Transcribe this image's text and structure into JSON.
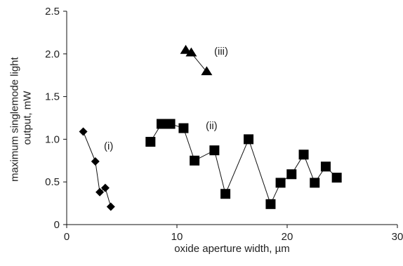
{
  "chart_data": {
    "type": "scatter",
    "xlabel": "oxide aperture width, µm",
    "ylabel": "maximum singlemode light output, mW",
    "xlim": [
      0,
      30
    ],
    "ylim": [
      0,
      2.5
    ],
    "x_ticks": [
      0,
      10,
      20,
      30
    ],
    "y_ticks": [
      0,
      0.5,
      1.0,
      1.5,
      2.0,
      2.5
    ],
    "x_tick_labels": [
      "0",
      "10",
      "20",
      "30"
    ],
    "y_tick_labels": [
      "0",
      "0.5",
      "1.0",
      "1.5",
      "2.0",
      "2.5"
    ],
    "grid": false,
    "legend": "none",
    "series": [
      {
        "name": "(i)",
        "marker": "diamond",
        "x": [
          1.5,
          2.6,
          3.0,
          3.5,
          4.0
        ],
        "y": [
          1.09,
          0.74,
          0.38,
          0.43,
          0.21
        ]
      },
      {
        "name": "(ii)",
        "marker": "square",
        "x": [
          7.6,
          8.6,
          9.4,
          10.6,
          11.6,
          13.4,
          14.4,
          16.5,
          18.5,
          19.4,
          20.4,
          21.5,
          22.5,
          23.5,
          24.5
        ],
        "y": [
          0.97,
          1.18,
          1.18,
          1.13,
          0.75,
          0.87,
          0.36,
          1.0,
          0.24,
          0.49,
          0.59,
          0.82,
          0.49,
          0.68,
          0.55
        ]
      },
      {
        "name": "(iii)",
        "marker": "triangle",
        "x": [
          10.8,
          11.3,
          12.7
        ],
        "y": [
          2.04,
          2.01,
          1.79
        ]
      }
    ]
  }
}
